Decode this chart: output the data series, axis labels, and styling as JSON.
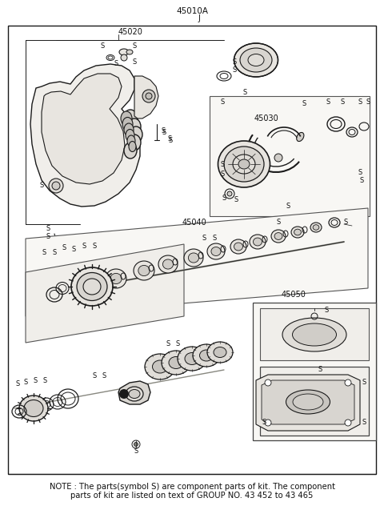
{
  "bg_color": "#f5f5f0",
  "line_color": "#1a1a1a",
  "text_color": "#111111",
  "title": "45010A",
  "title_sub": "J",
  "label_45020": "45020",
  "label_45030": "45030",
  "label_45040": "45040",
  "label_45050": "45050",
  "note_line1": "NOTE : The parts(symbol S) are component parts of kit. The component",
  "note_line2": "parts of kit are listed on text of GROUP NO. 43 452 to 43 465",
  "fig_width": 4.8,
  "fig_height": 6.57,
  "dpi": 100
}
